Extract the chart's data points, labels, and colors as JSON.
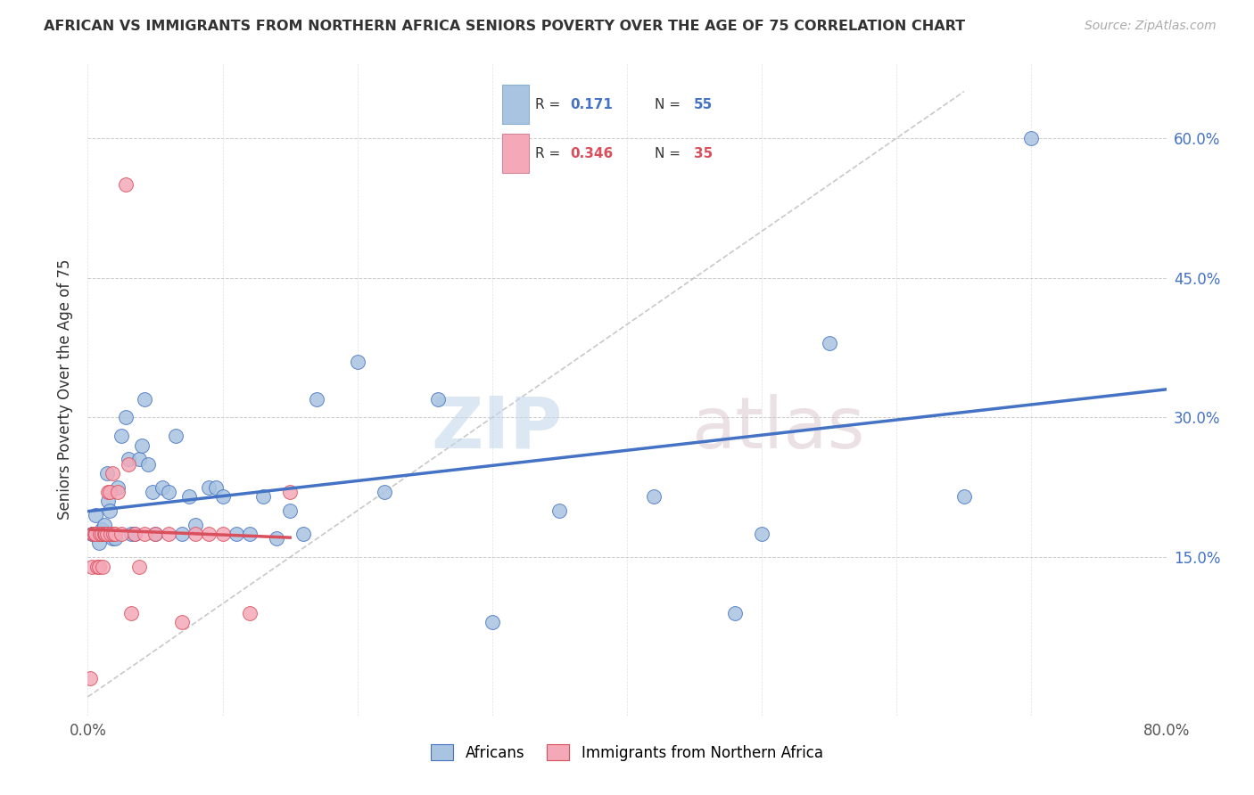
{
  "title": "AFRICAN VS IMMIGRANTS FROM NORTHERN AFRICA SENIORS POVERTY OVER THE AGE OF 75 CORRELATION CHART",
  "source": "Source: ZipAtlas.com",
  "ylabel": "Seniors Poverty Over the Age of 75",
  "xlim": [
    0,
    0.8
  ],
  "ylim": [
    -0.02,
    0.68
  ],
  "blue_color": "#a8c4e0",
  "pink_color": "#f4a8b8",
  "line_blue": "#4472c4",
  "line_pink": "#d94f5c",
  "africans_x": [
    0.003,
    0.004,
    0.005,
    0.006,
    0.007,
    0.008,
    0.009,
    0.01,
    0.011,
    0.012,
    0.013,
    0.014,
    0.015,
    0.016,
    0.018,
    0.02,
    0.022,
    0.025,
    0.028,
    0.03,
    0.032,
    0.035,
    0.038,
    0.04,
    0.042,
    0.045,
    0.048,
    0.05,
    0.055,
    0.06,
    0.065,
    0.07,
    0.075,
    0.08,
    0.09,
    0.095,
    0.1,
    0.11,
    0.12,
    0.13,
    0.14,
    0.15,
    0.16,
    0.17,
    0.2,
    0.22,
    0.26,
    0.3,
    0.35,
    0.42,
    0.48,
    0.5,
    0.55,
    0.65,
    0.7
  ],
  "africans_y": [
    0.175,
    0.175,
    0.175,
    0.195,
    0.175,
    0.165,
    0.175,
    0.18,
    0.175,
    0.185,
    0.175,
    0.24,
    0.21,
    0.2,
    0.17,
    0.17,
    0.225,
    0.28,
    0.3,
    0.255,
    0.175,
    0.175,
    0.255,
    0.27,
    0.32,
    0.25,
    0.22,
    0.175,
    0.225,
    0.22,
    0.28,
    0.175,
    0.215,
    0.185,
    0.225,
    0.225,
    0.215,
    0.175,
    0.175,
    0.215,
    0.17,
    0.2,
    0.175,
    0.32,
    0.36,
    0.22,
    0.32,
    0.08,
    0.2,
    0.215,
    0.09,
    0.175,
    0.38,
    0.215,
    0.6
  ],
  "immigrants_x": [
    0.002,
    0.003,
    0.004,
    0.005,
    0.006,
    0.007,
    0.008,
    0.009,
    0.01,
    0.011,
    0.012,
    0.013,
    0.014,
    0.015,
    0.016,
    0.017,
    0.018,
    0.019,
    0.02,
    0.022,
    0.025,
    0.028,
    0.03,
    0.032,
    0.035,
    0.038,
    0.042,
    0.05,
    0.06,
    0.07,
    0.08,
    0.09,
    0.1,
    0.12,
    0.15
  ],
  "immigrants_y": [
    0.02,
    0.14,
    0.175,
    0.175,
    0.175,
    0.14,
    0.14,
    0.175,
    0.175,
    0.14,
    0.175,
    0.175,
    0.175,
    0.22,
    0.22,
    0.175,
    0.24,
    0.175,
    0.175,
    0.22,
    0.175,
    0.55,
    0.25,
    0.09,
    0.175,
    0.14,
    0.175,
    0.175,
    0.175,
    0.08,
    0.175,
    0.175,
    0.175,
    0.09,
    0.22
  ]
}
